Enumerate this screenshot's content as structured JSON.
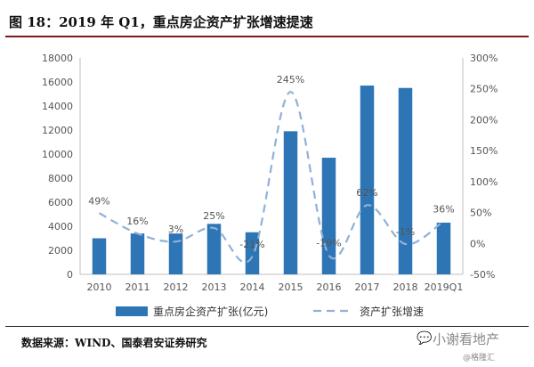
{
  "title": "图 18：2019 年 Q1，重点房企资产扩张增速提速",
  "source": "数据来源：WIND、国泰君安证券研究",
  "watermark": {
    "main": "小谢看地产",
    "sub": "@格隆汇",
    "icon": "speech-bubble-icon"
  },
  "chart_data": {
    "type": "bar",
    "categories": [
      "2010",
      "2011",
      "2012",
      "2013",
      "2014",
      "2015",
      "2016",
      "2017",
      "2018",
      "2019Q1"
    ],
    "series": [
      {
        "name": "重点房企资产扩张(亿元)",
        "type": "bar",
        "axis": "left",
        "color": "#2e75b6",
        "values": [
          3000,
          3400,
          3400,
          4200,
          3500,
          11900,
          9700,
          15700,
          15500,
          4300
        ]
      },
      {
        "name": "资产扩张增速",
        "type": "line",
        "axis": "right",
        "style": "dashed",
        "color": "#8fb1d9",
        "values": [
          49,
          16,
          3,
          25,
          -21,
          245,
          -19,
          62,
          -1,
          36
        ],
        "labels": [
          "49%",
          "16%",
          "3%",
          "25%",
          "-21%",
          "245%",
          "-19%",
          "62%",
          "-1%",
          "36%"
        ]
      }
    ],
    "left_axis": {
      "min": 0,
      "max": 18000,
      "ticks": [
        "0",
        "2000",
        "4000",
        "6000",
        "8000",
        "10000",
        "12000",
        "14000",
        "16000",
        "18000"
      ]
    },
    "right_axis": {
      "min": -50,
      "max": 300,
      "ticks": [
        "-50%",
        "0%",
        "50%",
        "100%",
        "150%",
        "200%",
        "250%",
        "300%"
      ]
    },
    "legend_position": "bottom",
    "grid": false
  }
}
